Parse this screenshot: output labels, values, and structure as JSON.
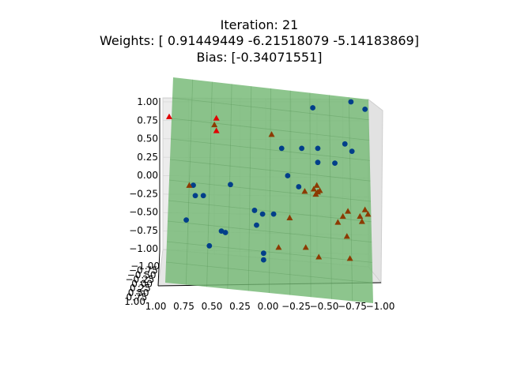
{
  "chart_data": {
    "type": "scatter",
    "title": [
      "Iteration: 21",
      "Weights: [ 0.91449449 -6.21518079 -5.14183869]",
      "Bias: [-0.34071551]"
    ],
    "xlabel": "",
    "ylabel": "",
    "zlabel": "",
    "grid": true,
    "legend": "none",
    "view": "3d",
    "xlim": [
      1.0,
      -1.0
    ],
    "zlim": [
      -1.0,
      1.0
    ],
    "x_ticks": [
      "1.00",
      "0.75",
      "0.50",
      "0.25",
      "0.00",
      "−0.25",
      "−0.50",
      "−0.75",
      "−1.00"
    ],
    "z_ticks": [
      "1.00",
      "0.75",
      "0.50",
      "0.25",
      "0.00",
      "−0.25",
      "−0.50",
      "−0.75",
      "−1.00"
    ],
    "y_ticks": [
      "−1.00",
      "−0.75",
      "−0.50",
      "−0.25",
      "0.00",
      "0.25",
      "0.50",
      "0.75",
      "1.00"
    ],
    "plane_color": "#74b874",
    "series": [
      {
        "marker": "circle",
        "color": "#003f8a",
        "points": [
          {
            "x": 0.83,
            "z": -0.6
          },
          {
            "x": 0.76,
            "z": -0.13
          },
          {
            "x": 0.74,
            "z": -0.27
          },
          {
            "x": 0.66,
            "z": -0.27
          },
          {
            "x": 0.6,
            "z": -0.95
          },
          {
            "x": 0.48,
            "z": -0.75
          },
          {
            "x": 0.44,
            "z": -0.77
          },
          {
            "x": 0.39,
            "z": -0.12
          },
          {
            "x": 0.15,
            "z": -0.47
          },
          {
            "x": 0.13,
            "z": -0.67
          },
          {
            "x": 0.07,
            "z": -0.52
          },
          {
            "x": 0.06,
            "z": -1.05
          },
          {
            "x": 0.06,
            "z": -1.14
          },
          {
            "x": -0.04,
            "z": -0.52
          },
          {
            "x": -0.12,
            "z": 0.37
          },
          {
            "x": -0.18,
            "z": 0.0
          },
          {
            "x": -0.29,
            "z": -0.15
          },
          {
            "x": -0.32,
            "z": 0.37
          },
          {
            "x": -0.43,
            "z": 0.92
          },
          {
            "x": -0.48,
            "z": 0.37
          },
          {
            "x": -0.48,
            "z": 0.18
          },
          {
            "x": -0.65,
            "z": 0.17
          },
          {
            "x": -0.75,
            "z": 0.43
          },
          {
            "x": -0.82,
            "z": 0.33
          },
          {
            "x": -0.81,
            "z": 1.0
          },
          {
            "x": -0.95,
            "z": 0.9
          }
        ]
      },
      {
        "marker": "triangle",
        "color": "#8c3a00",
        "points": [
          {
            "x": 0.55,
            "z": 0.69
          },
          {
            "x": -0.02,
            "z": 0.56
          },
          {
            "x": 0.8,
            "z": -0.13
          },
          {
            "x": -0.2,
            "z": -0.57
          },
          {
            "x": -0.09,
            "z": -0.97
          },
          {
            "x": -0.36,
            "z": -0.97
          },
          {
            "x": -0.35,
            "z": -0.21
          },
          {
            "x": -0.44,
            "z": -0.18
          },
          {
            "x": -0.46,
            "z": -0.25
          },
          {
            "x": -0.47,
            "z": -0.13
          },
          {
            "x": -0.48,
            "z": -0.22
          },
          {
            "x": -0.49,
            "z": -1.1
          },
          {
            "x": -0.5,
            "z": -0.2
          },
          {
            "x": -0.68,
            "z": -0.63
          },
          {
            "x": -0.73,
            "z": -0.55
          },
          {
            "x": -0.78,
            "z": -0.48
          },
          {
            "x": -0.77,
            "z": -0.82
          },
          {
            "x": -0.8,
            "z": -1.12
          },
          {
            "x": -0.9,
            "z": -0.55
          },
          {
            "x": -0.92,
            "z": -0.62
          },
          {
            "x": -0.95,
            "z": -0.46
          },
          {
            "x": -0.98,
            "z": -0.52
          }
        ]
      },
      {
        "marker": "triangle",
        "color": "#e00000",
        "points": [
          {
            "x": 1.0,
            "z": 0.8
          },
          {
            "x": 0.53,
            "z": 0.78
          },
          {
            "x": 0.53,
            "z": 0.61
          }
        ]
      }
    ]
  }
}
